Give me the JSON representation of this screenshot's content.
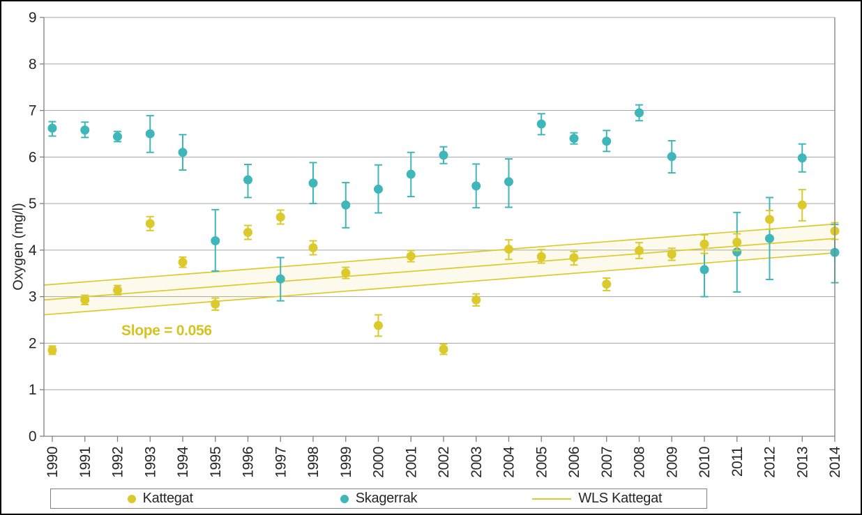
{
  "figure": {
    "y_axis_title": "Oxygen (mg/l)"
  },
  "colors": {
    "kattegat": "#DCC92B",
    "skagerrak": "#3FB6B9",
    "band_fill": "#DCC92B",
    "gridline": "#A6A6A6",
    "axis": "#808080",
    "text": "#262626",
    "slope_text": "#D5C31F"
  },
  "legend": {
    "items": [
      {
        "label": "Kattegat",
        "marker": "dot",
        "color": "#DCC92B"
      },
      {
        "label": "Skagerrak",
        "marker": "dot",
        "color": "#3FB6B9"
      },
      {
        "label": "WLS Kattegat",
        "marker": "line",
        "color": "#DCC92B"
      }
    ]
  },
  "chart_data": {
    "type": "scatter",
    "title": "",
    "xlabel": "",
    "ylabel": "Oxygen (mg/l)",
    "ylim": [
      0,
      9
    ],
    "y_ticks": [
      0,
      1,
      2,
      3,
      4,
      5,
      6,
      7,
      8,
      9
    ],
    "grid": true,
    "legend_position": "bottom",
    "categories": [
      "1990",
      "1991",
      "1992",
      "1993",
      "1994",
      "1995",
      "1996",
      "1997",
      "1998",
      "1999",
      "2000",
      "2001",
      "2002",
      "2003",
      "2004",
      "2005",
      "2006",
      "2007",
      "2008",
      "2009",
      "2010",
      "2011",
      "2012",
      "2013",
      "2014"
    ],
    "series": [
      {
        "name": "Skagerrak",
        "color": "#3FB6B9",
        "values": [
          6.62,
          6.58,
          6.44,
          6.5,
          6.1,
          4.2,
          5.51,
          3.38,
          5.44,
          4.97,
          5.31,
          5.63,
          6.04,
          5.38,
          5.47,
          6.71,
          6.4,
          6.34,
          6.95,
          6.01,
          3.58,
          3.96,
          4.25,
          5.98,
          3.95
        ],
        "err_low": [
          6.45,
          6.42,
          6.33,
          6.1,
          5.72,
          3.55,
          5.13,
          2.91,
          5.0,
          4.48,
          4.8,
          5.15,
          5.86,
          4.91,
          4.92,
          6.48,
          6.28,
          6.12,
          6.78,
          5.66,
          3.0,
          3.1,
          3.37,
          5.68,
          3.3
        ],
        "err_high": [
          6.76,
          6.75,
          6.55,
          6.89,
          6.48,
          4.87,
          5.84,
          3.84,
          5.88,
          5.45,
          5.83,
          6.1,
          6.22,
          5.85,
          5.96,
          6.93,
          6.52,
          6.57,
          7.12,
          6.35,
          4.33,
          4.81,
          5.13,
          6.28,
          4.55
        ]
      },
      {
        "name": "Kattegat",
        "color": "#DCC92B",
        "values": [
          1.85,
          2.93,
          3.14,
          4.57,
          3.74,
          2.84,
          4.38,
          4.71,
          4.05,
          3.51,
          2.38,
          3.87,
          1.87,
          2.93,
          4.02,
          3.86,
          3.84,
          3.27,
          3.99,
          3.91,
          4.13,
          4.17,
          4.66,
          4.97,
          4.41
        ],
        "err_low": [
          1.76,
          2.83,
          3.04,
          4.42,
          3.63,
          2.71,
          4.23,
          4.56,
          3.9,
          3.39,
          2.15,
          3.75,
          1.76,
          2.8,
          3.8,
          3.72,
          3.68,
          3.13,
          3.82,
          3.78,
          3.93,
          3.99,
          4.45,
          4.63,
          4.23
        ],
        "err_high": [
          1.94,
          3.03,
          3.24,
          4.72,
          3.85,
          2.97,
          4.53,
          4.86,
          4.2,
          3.63,
          2.61,
          3.99,
          1.98,
          3.06,
          4.22,
          4.01,
          3.97,
          3.4,
          4.16,
          4.04,
          4.33,
          4.35,
          4.85,
          5.3,
          4.59
        ]
      }
    ],
    "trend": {
      "label": "WLS Kattegat",
      "slope": 0.056,
      "slope_text": "Slope = 0.056",
      "x_start": 1989.75,
      "x_end": 2014,
      "center": [
        2.93,
        4.25
      ],
      "upper": [
        3.25,
        4.56
      ],
      "lower": [
        2.61,
        3.94
      ]
    },
    "annotation": {
      "text": "Slope = 0.056",
      "x": 1992.1,
      "y": 2.2
    }
  }
}
